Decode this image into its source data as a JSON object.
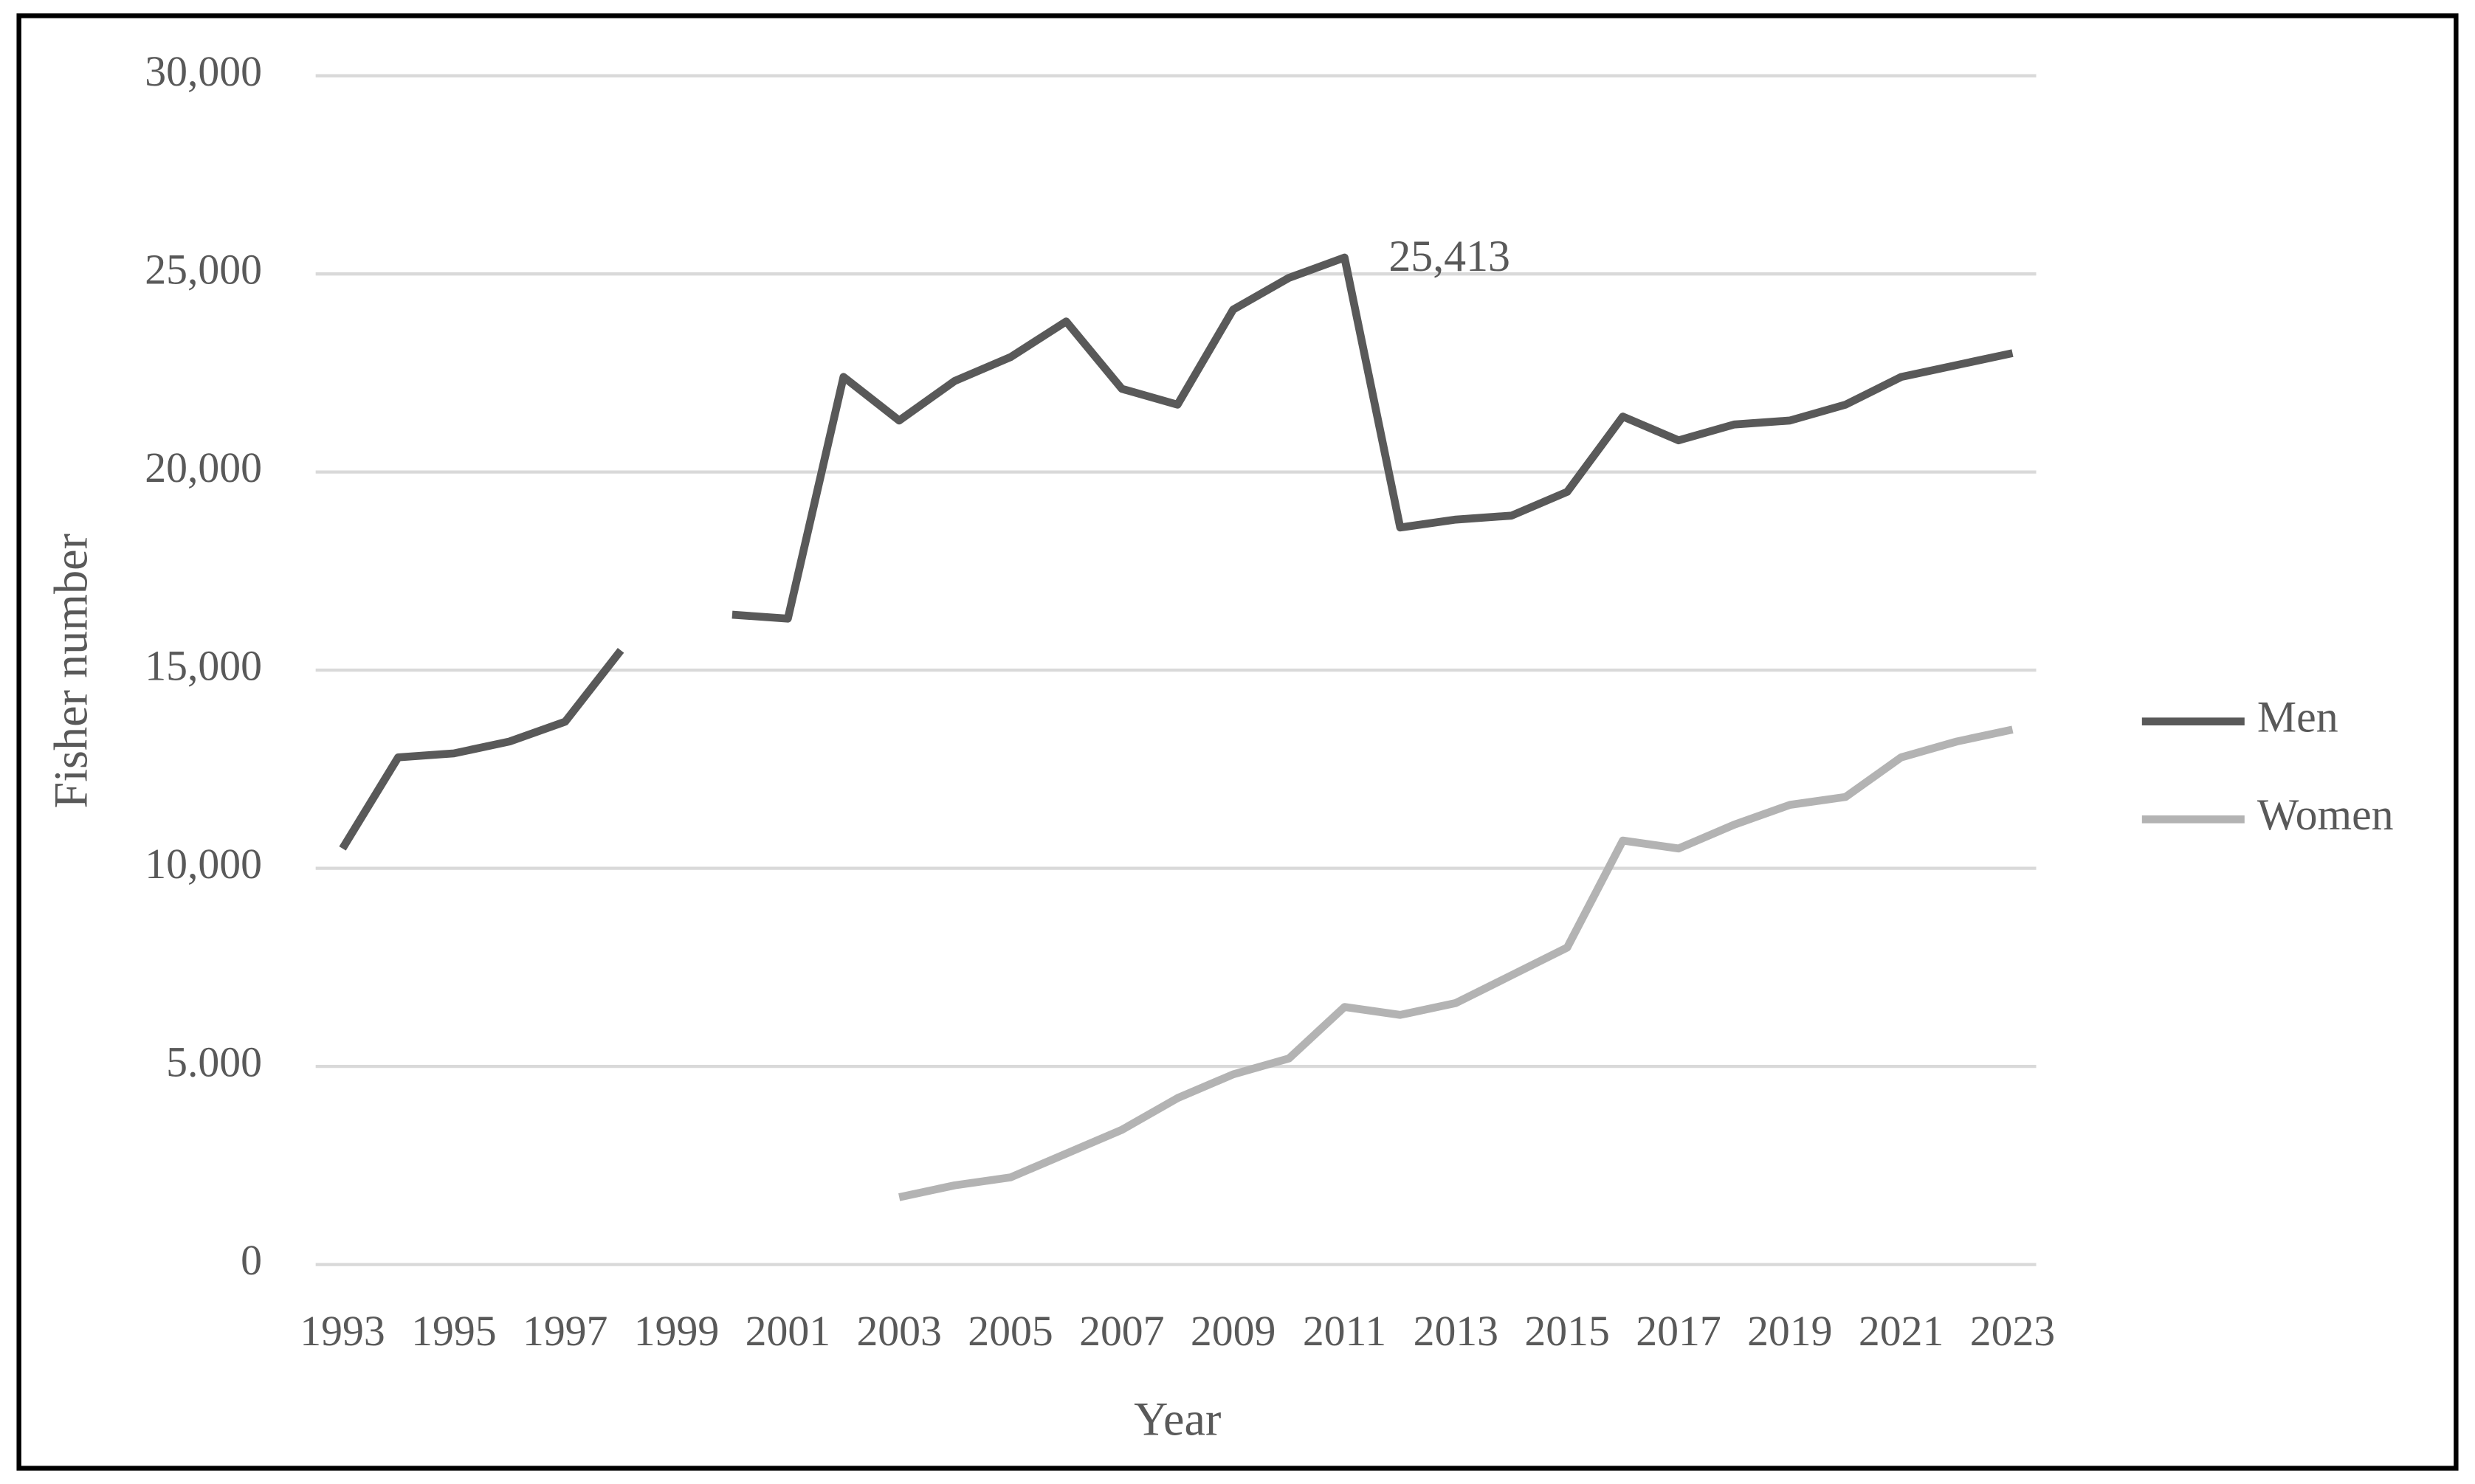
{
  "chart_data": {
    "type": "line",
    "x_label": "Year",
    "y_label": "Fisher number",
    "categories": [
      "1993",
      null,
      "1995",
      null,
      "1997",
      null,
      "1999",
      null,
      "2001",
      null,
      "2003",
      null,
      "2005",
      null,
      "2007",
      null,
      "2009",
      null,
      "2011",
      null,
      "2013",
      null,
      "2015",
      null,
      "2017",
      null,
      "2019",
      null,
      "2021",
      null,
      "2023"
    ],
    "series": [
      {
        "name": "Men",
        "color": "#595959",
        "values": [
          10500,
          12800,
          12900,
          13200,
          13700,
          15500,
          null,
          16400,
          16300,
          22400,
          21300,
          22300,
          22900,
          23800,
          22100,
          21700,
          24100,
          24900,
          25413,
          18600,
          18800,
          18900,
          19500,
          21400,
          20800,
          21200,
          21300,
          21700,
          22400,
          22700,
          23000
        ],
        "value_labels": [
          null,
          null,
          null,
          null,
          null,
          null,
          null,
          null,
          null,
          null,
          null,
          null,
          null,
          null,
          null,
          null,
          null,
          null,
          "25,413",
          null,
          null,
          null,
          null,
          null,
          null,
          null,
          null,
          null,
          null,
          null,
          null
        ]
      },
      {
        "name": "Women",
        "color": "#b3b3b3",
        "values": [
          null,
          null,
          null,
          null,
          null,
          null,
          null,
          null,
          null,
          null,
          1700,
          2000,
          2200,
          2800,
          3400,
          4200,
          4800,
          5200,
          6500,
          6300,
          6600,
          7300,
          8000,
          10700,
          10500,
          11100,
          11600,
          11800,
          12800,
          13200,
          13500
        ]
      }
    ],
    "ylim": [
      0,
      30000
    ],
    "yticks": [
      0,
      {
        "value": 5000,
        "label": "5.000"
      },
      {
        "value": 10000,
        "label": "10,000"
      },
      {
        "value": 15000,
        "label": "15,000"
      },
      {
        "value": 20000,
        "label": "20,000"
      },
      {
        "value": 25000,
        "label": "25,000"
      },
      {
        "value": 30000,
        "label": "30,000"
      }
    ],
    "grid": true,
    "legend": "right"
  }
}
